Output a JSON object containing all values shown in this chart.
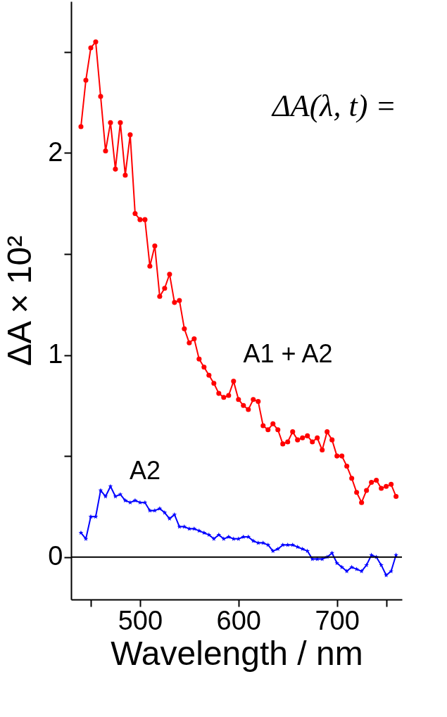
{
  "chart_data": {
    "type": "line",
    "xlabel": "Wavelength / nm",
    "ylabel": "ΔA × 10²",
    "x": [
      440,
      445,
      450,
      455,
      460,
      465,
      470,
      475,
      480,
      485,
      490,
      495,
      500,
      505,
      510,
      515,
      520,
      525,
      530,
      535,
      540,
      545,
      550,
      555,
      560,
      565,
      570,
      575,
      580,
      585,
      590,
      595,
      600,
      605,
      610,
      615,
      620,
      625,
      630,
      635,
      640,
      645,
      650,
      655,
      660,
      665,
      670,
      675,
      680,
      685,
      690,
      695,
      700,
      705,
      710,
      715,
      720,
      725,
      730,
      735,
      740,
      745,
      750,
      755,
      760
    ],
    "series": [
      {
        "name": "A1 + A2",
        "color": "#ff0000",
        "marker": "circle",
        "values": [
          2.13,
          2.36,
          2.52,
          2.55,
          2.28,
          2.01,
          2.15,
          1.92,
          2.15,
          1.89,
          2.09,
          1.7,
          1.67,
          1.67,
          1.44,
          1.54,
          1.29,
          1.33,
          1.4,
          1.26,
          1.27,
          1.13,
          1.06,
          1.08,
          0.98,
          0.94,
          0.9,
          0.86,
          0.81,
          0.79,
          0.8,
          0.87,
          0.78,
          0.75,
          0.73,
          0.78,
          0.77,
          0.65,
          0.63,
          0.66,
          0.63,
          0.56,
          0.57,
          0.62,
          0.58,
          0.59,
          0.6,
          0.57,
          0.59,
          0.53,
          0.62,
          0.58,
          0.5,
          0.5,
          0.45,
          0.39,
          0.32,
          0.27,
          0.33,
          0.37,
          0.38,
          0.34,
          0.35,
          0.36,
          0.3
        ]
      },
      {
        "name": "A2",
        "color": "#0000ff",
        "marker": "star",
        "values": [
          0.12,
          0.09,
          0.2,
          0.2,
          0.33,
          0.3,
          0.35,
          0.3,
          0.31,
          0.28,
          0.27,
          0.28,
          0.27,
          0.27,
          0.23,
          0.23,
          0.24,
          0.22,
          0.19,
          0.21,
          0.15,
          0.15,
          0.14,
          0.14,
          0.13,
          0.12,
          0.11,
          0.09,
          0.11,
          0.09,
          0.1,
          0.09,
          0.09,
          0.1,
          0.1,
          0.08,
          0.07,
          0.07,
          0.06,
          0.03,
          0.04,
          0.06,
          0.06,
          0.06,
          0.05,
          0.04,
          0.03,
          -0.01,
          -0.01,
          -0.01,
          0.0,
          0.02,
          -0.03,
          -0.05,
          -0.07,
          -0.05,
          -0.06,
          -0.07,
          -0.04,
          0.01,
          0.0,
          -0.04,
          -0.09,
          -0.07,
          0.01
        ]
      }
    ],
    "annotations": [
      "ΔA(λ, t) ="
    ],
    "ref_lines": [
      {
        "axis": "y",
        "value": 0,
        "color": "#000000"
      }
    ],
    "xlim": [
      430,
      766
    ],
    "ylim": [
      -0.21,
      2.75
    ],
    "xticks": [
      {
        "value": 450,
        "label": null
      },
      500,
      600,
      700,
      {
        "value": 750,
        "label": null
      }
    ],
    "yticks": [
      0,
      {
        "value": 0.5,
        "label": null
      },
      1,
      {
        "value": 1.5,
        "label": null
      },
      2,
      {
        "value": 2.5,
        "label": null
      }
    ],
    "grid": false,
    "line_style": "solid"
  }
}
